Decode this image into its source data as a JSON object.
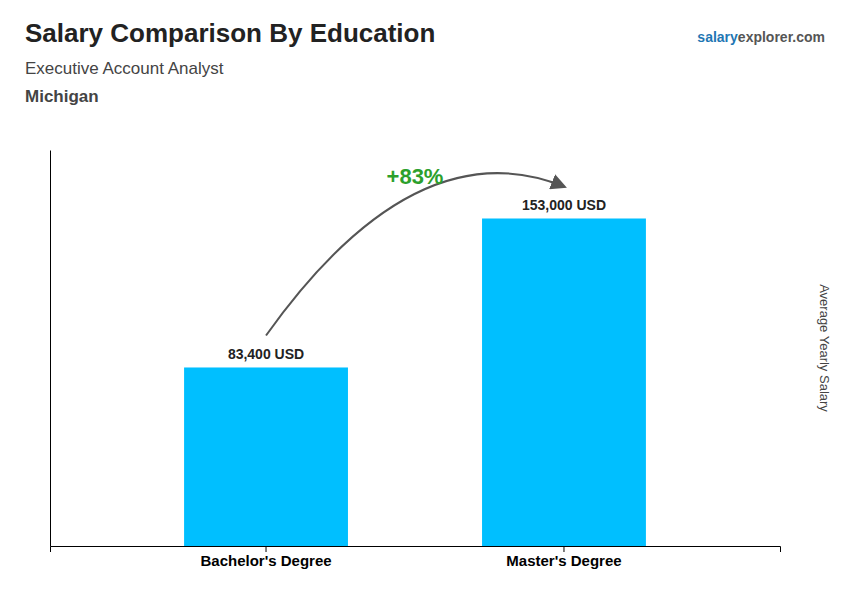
{
  "chart_data": {
    "type": "bar",
    "title": "Salary Comparison By Education",
    "subtitle": "Executive Account Analyst",
    "y_label": "Average Yearly Salary",
    "annotations": [
      "Michigan",
      "+83%",
      "salary",
      "explorer.com"
    ],
    "categories": [
      "Bachelor's Degree",
      "Master's Degree"
    ],
    "values": [
      83400,
      153000
    ],
    "value_labels": [
      "83,400 USD",
      "153,000 USD"
    ],
    "data_labels": true,
    "color": "#00BFFF",
    "ylim": [
      0,
      185000
    ],
    "tick_labels": "x",
    "grid": false
  }
}
